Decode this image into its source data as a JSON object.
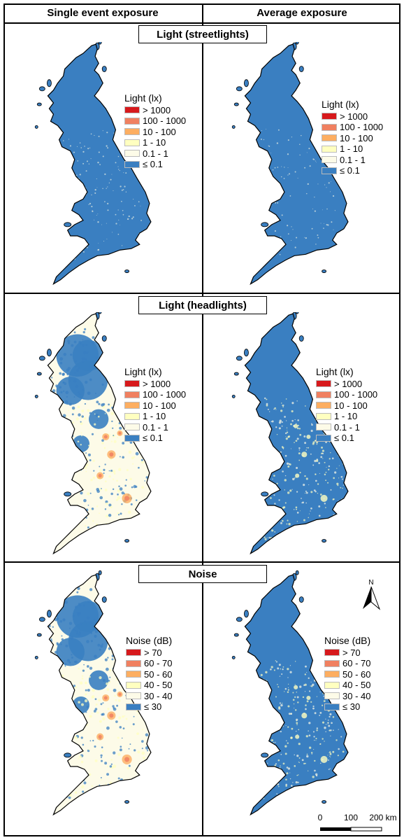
{
  "columns": {
    "left": "Single event exposure",
    "right": "Average exposure"
  },
  "rows": [
    {
      "title": "Light (streetlights)",
      "legend_title": "Light (lx)",
      "classes": [
        "> 1000",
        "100 - 1000",
        "10 - 100",
        "1 - 10",
        "0.1 - 1",
        "≤ 0.1"
      ],
      "left_pattern": "mostly-low",
      "right_pattern": "mostly-low"
    },
    {
      "title": "Light (headlights)",
      "legend_title": "Light (lx)",
      "classes": [
        "> 1000",
        "100 - 1000",
        "10 - 100",
        "1 - 10",
        "0.1 - 1",
        "≤ 0.1"
      ],
      "left_pattern": "widespread",
      "right_pattern": "urban"
    },
    {
      "title": "Noise",
      "legend_title": "Noise (dB)",
      "classes": [
        "> 70",
        "60 - 70",
        "50 - 60",
        "40 - 50",
        "30 - 40",
        "≤ 30"
      ],
      "left_pattern": "widespread",
      "right_pattern": "urban"
    }
  ],
  "class_colors": [
    "#d7191c",
    "#f08060",
    "#fdae61",
    "#ffffc0",
    "#fdfbe8",
    "#3a7fc1"
  ],
  "north_label": "N",
  "scale": {
    "ticks": [
      "0",
      "100",
      "200 km"
    ]
  }
}
